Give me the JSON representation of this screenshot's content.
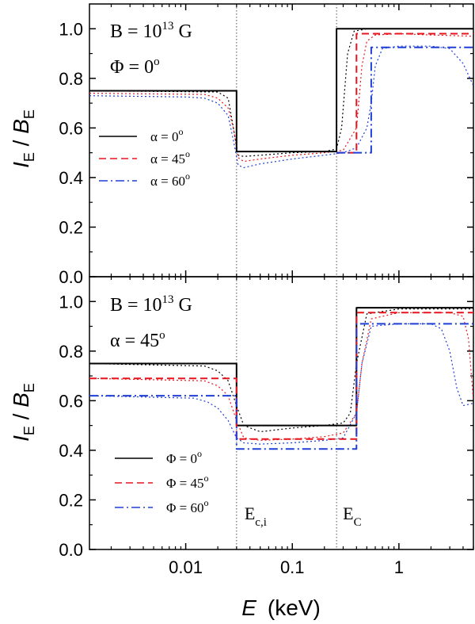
{
  "figure": {
    "xlabel_var": "E",
    "xlabel_unit": "(keV)",
    "ylabel": {
      "main": "I",
      "sub": "E",
      "sep": " / ",
      "main2": "B",
      "sub2": "E"
    }
  },
  "chart_data": [
    {
      "type": "line",
      "panel": "top",
      "x_scale": "log",
      "xlim": [
        0.00125,
        5
      ],
      "ylim": [
        0,
        1.1
      ],
      "x_ticks": [
        0.01,
        0.1,
        1
      ],
      "x_tick_labels": [
        "0.01",
        "0.1",
        "1"
      ],
      "y_ticks": [
        0,
        0.2,
        0.4,
        0.6,
        0.8,
        1.0
      ],
      "y_tick_labels": [
        "0.0",
        "0.2",
        "0.4",
        "0.6",
        "0.8",
        "1.0"
      ],
      "annotations": {
        "field": {
          "prefix": "B = 10",
          "exp": "13",
          "suffix": " G"
        },
        "angle": {
          "prefix": "Φ = 0",
          "exp": "o"
        }
      },
      "reference_lines_x": [
        0.03,
        0.26
      ],
      "legend": [
        {
          "label": "α = 0",
          "exp": "o",
          "color": "#000000",
          "dash": "solid"
        },
        {
          "label": "α = 45",
          "exp": "o",
          "color": "#e8141d",
          "dash": "dashed"
        },
        {
          "label": "α = 60",
          "exp": "o",
          "color": "#1f3fd6",
          "dash": "dashdot"
        }
      ],
      "series": [
        {
          "name": "α = 0°",
          "color": "#000000",
          "dash": "solid",
          "width": 2,
          "x": [
            0.00125,
            0.03,
            0.03,
            0.26,
            0.26,
            5
          ],
          "y": [
            0.75,
            0.75,
            0.505,
            0.505,
            1.0,
            1.0
          ]
        },
        {
          "name": "α = 45°",
          "color": "#e8141d",
          "dash": "dashed",
          "width": 2,
          "x": [
            0.26,
            0.4,
            0.4,
            5
          ],
          "y": [
            0.5,
            0.5,
            0.98,
            0.98
          ]
        },
        {
          "name": "α = 60°",
          "color": "#1f3fd6",
          "dash": "dashdot",
          "width": 2,
          "x": [
            0.26,
            0.55,
            0.55,
            5
          ],
          "y": [
            0.5,
            0.5,
            0.925,
            0.925
          ]
        },
        {
          "name": "",
          "color": "#000000",
          "dash": "dotted",
          "width": 1.2,
          "x": [
            0.00125,
            0.02,
            0.025,
            0.028,
            0.031,
            0.035,
            0.05,
            0.1,
            0.2,
            0.26,
            0.29,
            0.33,
            0.38,
            0.5,
            5
          ],
          "y": [
            0.75,
            0.745,
            0.72,
            0.6,
            0.49,
            0.485,
            0.49,
            0.5,
            0.505,
            0.515,
            0.6,
            0.9,
            0.99,
            1.0,
            1.0
          ]
        },
        {
          "name": "",
          "color": "#e8141d",
          "dash": "dotted",
          "width": 1.2,
          "x": [
            0.00125,
            0.015,
            0.02,
            0.025,
            0.028,
            0.031,
            0.035,
            0.05,
            0.1,
            0.2,
            0.3,
            0.4,
            0.45,
            0.5,
            0.6,
            1,
            2,
            5
          ],
          "y": [
            0.74,
            0.735,
            0.72,
            0.68,
            0.6,
            0.48,
            0.465,
            0.475,
            0.49,
            0.5,
            0.51,
            0.6,
            0.85,
            0.95,
            0.975,
            0.98,
            0.975,
            0.97
          ]
        },
        {
          "name": "",
          "color": "#1f3fd6",
          "dash": "dotted",
          "width": 1.2,
          "x": [
            0.00125,
            0.01,
            0.015,
            0.02,
            0.025,
            0.028,
            0.031,
            0.035,
            0.05,
            0.1,
            0.2,
            0.3,
            0.4,
            0.5,
            0.55,
            0.6,
            0.7,
            1,
            2,
            3,
            4,
            5
          ],
          "y": [
            0.73,
            0.725,
            0.72,
            0.7,
            0.65,
            0.55,
            0.45,
            0.44,
            0.455,
            0.475,
            0.49,
            0.5,
            0.52,
            0.6,
            0.7,
            0.85,
            0.92,
            0.93,
            0.93,
            0.92,
            0.86,
            0.77
          ]
        }
      ]
    },
    {
      "type": "line",
      "panel": "bottom",
      "x_scale": "log",
      "xlim": [
        0.00125,
        5
      ],
      "ylim": [
        0,
        1.1
      ],
      "x_ticks": [
        0.01,
        0.1,
        1
      ],
      "x_tick_labels": [
        "0.01",
        "0.1",
        "1"
      ],
      "y_ticks": [
        0,
        0.2,
        0.4,
        0.6,
        0.8,
        1.0
      ],
      "y_tick_labels": [
        "0.0",
        "0.2",
        "0.4",
        "0.6",
        "0.8",
        "1.0"
      ],
      "annotations": {
        "field": {
          "prefix": "B = 10",
          "exp": "13",
          "suffix": " G"
        },
        "angle": {
          "prefix": "α = 45",
          "exp": "o"
        },
        "ec_i": {
          "main": "E",
          "sub": "c,i"
        },
        "ec": {
          "main": "E",
          "sub": "C"
        }
      },
      "reference_lines_x": [
        0.03,
        0.26
      ],
      "legend": [
        {
          "label": "Φ = 0",
          "exp": "o",
          "color": "#000000",
          "dash": "solid"
        },
        {
          "label": "Φ = 45",
          "exp": "o",
          "color": "#e8141d",
          "dash": "dashed"
        },
        {
          "label": "Φ = 60",
          "exp": "o",
          "color": "#1f3fd6",
          "dash": "dashdot"
        }
      ],
      "series": [
        {
          "name": "Φ = 0°",
          "color": "#000000",
          "dash": "solid",
          "width": 2,
          "x": [
            0.00125,
            0.03,
            0.03,
            0.4,
            0.4,
            5
          ],
          "y": [
            0.75,
            0.75,
            0.5,
            0.5,
            0.975,
            0.975
          ]
        },
        {
          "name": "Φ = 45°",
          "color": "#e8141d",
          "dash": "dashed",
          "width": 2,
          "x": [
            0.00125,
            0.03,
            0.03,
            0.4,
            0.4,
            5
          ],
          "y": [
            0.69,
            0.69,
            0.445,
            0.445,
            0.955,
            0.955
          ]
        },
        {
          "name": "Φ = 60°",
          "color": "#1f3fd6",
          "dash": "dashdot",
          "width": 2,
          "x": [
            0.00125,
            0.03,
            0.03,
            0.4,
            0.4,
            5
          ],
          "y": [
            0.62,
            0.62,
            0.405,
            0.405,
            0.91,
            0.91
          ]
        },
        {
          "name": "",
          "color": "#000000",
          "dash": "dotted",
          "width": 1.2,
          "x": [
            0.00125,
            0.015,
            0.02,
            0.025,
            0.03,
            0.035,
            0.05,
            0.1,
            0.2,
            0.3,
            0.35,
            0.4,
            0.5,
            1,
            5
          ],
          "y": [
            0.75,
            0.74,
            0.72,
            0.68,
            0.58,
            0.5,
            0.475,
            0.49,
            0.5,
            0.51,
            0.55,
            0.75,
            0.95,
            0.97,
            0.97
          ]
        },
        {
          "name": "",
          "color": "#e8141d",
          "dash": "dotted",
          "width": 1.2,
          "x": [
            0.00125,
            0.015,
            0.02,
            0.025,
            0.03,
            0.035,
            0.05,
            0.1,
            0.2,
            0.3,
            0.4,
            0.45,
            0.55,
            1,
            3,
            4,
            4.5,
            5
          ],
          "y": [
            0.69,
            0.68,
            0.66,
            0.62,
            0.52,
            0.45,
            0.44,
            0.445,
            0.455,
            0.47,
            0.55,
            0.75,
            0.93,
            0.955,
            0.955,
            0.94,
            0.85,
            0.6
          ]
        },
        {
          "name": "",
          "color": "#1f3fd6",
          "dash": "dotted",
          "width": 1.2,
          "x": [
            0.00125,
            0.012,
            0.016,
            0.02,
            0.025,
            0.03,
            0.035,
            0.05,
            0.1,
            0.2,
            0.3,
            0.4,
            0.45,
            0.55,
            1,
            2,
            2.5,
            3,
            3.5,
            4,
            5
          ],
          "y": [
            0.62,
            0.61,
            0.595,
            0.57,
            0.52,
            0.45,
            0.43,
            0.425,
            0.43,
            0.44,
            0.45,
            0.55,
            0.75,
            0.9,
            0.91,
            0.91,
            0.89,
            0.8,
            0.65,
            0.58,
            0.59
          ]
        }
      ]
    }
  ]
}
